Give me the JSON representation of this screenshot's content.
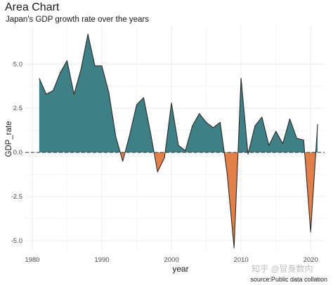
{
  "chart_data": {
    "type": "area",
    "title": "Area Chart",
    "subtitle": "Japan's GDP growth rate over the years",
    "xlabel": "year",
    "ylabel": "GDP_rate",
    "caption": "source:Public data collation",
    "xlim": [
      1979,
      2022
    ],
    "ylim": [
      -5.6,
      7.2
    ],
    "x_ticks": [
      1980,
      1990,
      2000,
      2010,
      2020
    ],
    "y_ticks": [
      -5.0,
      -2.5,
      0.0,
      2.5,
      5.0
    ],
    "y_tick_labels": [
      "-5.0",
      "-2.5",
      "0.0",
      "2.5",
      "5.0"
    ],
    "grid": true,
    "baseline": 0,
    "colors": {
      "positive": "#3f7f86",
      "negative": "#e3804a",
      "line": "#2b2b2b",
      "grid": "#ececec"
    },
    "x": [
      1981,
      1982,
      1983,
      1984,
      1985,
      1986,
      1987,
      1988,
      1989,
      1990,
      1991,
      1992,
      1993,
      1994,
      1995,
      1996,
      1997,
      1998,
      1999,
      2000,
      2001,
      2002,
      2003,
      2004,
      2005,
      2006,
      2007,
      2008,
      2009,
      2010,
      2011,
      2012,
      2013,
      2014,
      2015,
      2016,
      2017,
      2018,
      2019,
      2020,
      2021
    ],
    "values": [
      4.2,
      3.3,
      3.5,
      4.5,
      5.2,
      3.3,
      4.7,
      6.7,
      4.9,
      4.9,
      3.4,
      0.9,
      -0.5,
      1.0,
      2.7,
      3.1,
      1.1,
      -1.1,
      -0.3,
      2.8,
      0.4,
      0.1,
      1.5,
      2.2,
      1.7,
      1.4,
      1.7,
      -1.2,
      -5.4,
      4.2,
      -0.1,
      1.5,
      2.0,
      0.4,
      1.2,
      0.5,
      1.9,
      0.8,
      0.7,
      -4.5,
      1.6
    ]
  },
  "watermark": "知乎 @冒身数内"
}
